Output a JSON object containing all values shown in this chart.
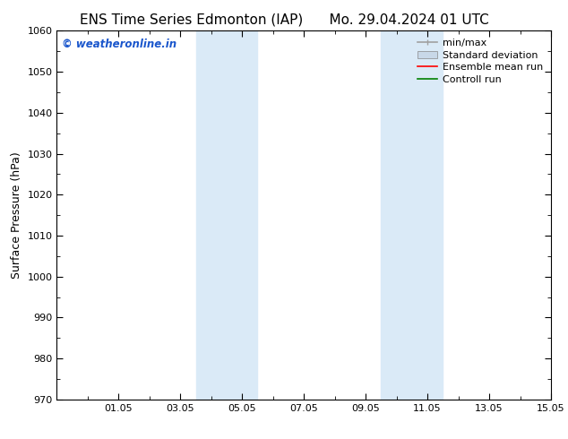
{
  "title_left": "ENS Time Series Edmonton (IAP)",
  "title_right": "Mo. 29.04.2024 01 UTC",
  "ylabel": "Surface Pressure (hPa)",
  "ylim": [
    970,
    1060
  ],
  "yticks": [
    970,
    980,
    990,
    1000,
    1010,
    1020,
    1030,
    1040,
    1050,
    1060
  ],
  "xlim": [
    0,
    16
  ],
  "xtick_labels": [
    "01.05",
    "03.05",
    "05.05",
    "07.05",
    "09.05",
    "11.05",
    "13.05",
    "15.05"
  ],
  "xtick_positions": [
    2,
    4,
    6,
    8,
    10,
    12,
    14,
    16
  ],
  "shaded_bands": [
    {
      "x_start": 4.5,
      "x_end": 6.5
    },
    {
      "x_start": 10.5,
      "x_end": 12.5
    }
  ],
  "shaded_color": "#daeaf7",
  "watermark_text": "© weatheronline.in",
  "watermark_color": "#1a56cc",
  "legend_entries": [
    {
      "label": "min/max",
      "color": "#a0a0a0",
      "lw": 1.2
    },
    {
      "label": "Standard deviation",
      "color": "#c8d8e8",
      "lw": 6
    },
    {
      "label": "Ensemble mean run",
      "color": "red",
      "lw": 1.2
    },
    {
      "label": "Controll run",
      "color": "green",
      "lw": 1.2
    }
  ],
  "bg_color": "#ffffff",
  "title_fontsize": 11,
  "tick_fontsize": 8,
  "label_fontsize": 9,
  "legend_fontsize": 8
}
